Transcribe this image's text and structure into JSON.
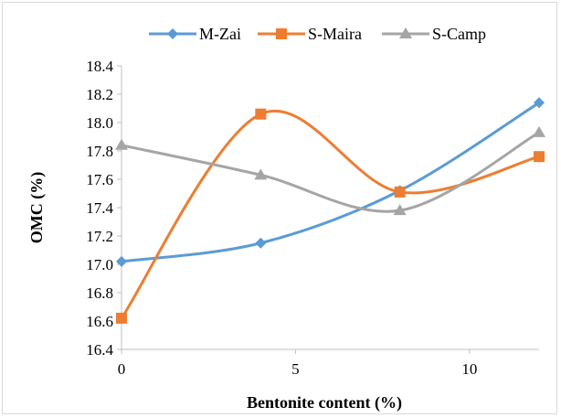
{
  "chart_data": {
    "type": "line",
    "title": "",
    "xlabel": "Bentonite content (%)",
    "ylabel": "OMC (%)",
    "xlim": [
      0,
      12
    ],
    "ylim": [
      16.4,
      18.4
    ],
    "xticks": [
      0,
      5,
      10
    ],
    "yticks": [
      16.4,
      16.6,
      16.8,
      17.0,
      17.2,
      17.4,
      17.6,
      17.8,
      18.0,
      18.2,
      18.4
    ],
    "grid": false,
    "legend_position": "top",
    "smooth": true,
    "series": [
      {
        "name": "M-Zai",
        "color": "#5b9bd5",
        "marker": "diamond",
        "x": [
          0,
          4,
          8,
          12
        ],
        "y": [
          17.02,
          17.15,
          17.52,
          18.14
        ]
      },
      {
        "name": "S-Maira",
        "color": "#ed7d31",
        "marker": "square",
        "x": [
          0,
          4,
          8,
          12
        ],
        "y": [
          16.62,
          18.06,
          17.51,
          17.76
        ]
      },
      {
        "name": "S-Camp",
        "color": "#a5a5a5",
        "marker": "triangle",
        "x": [
          0,
          4,
          8,
          12
        ],
        "y": [
          17.84,
          17.63,
          17.38,
          17.93
        ]
      }
    ]
  }
}
